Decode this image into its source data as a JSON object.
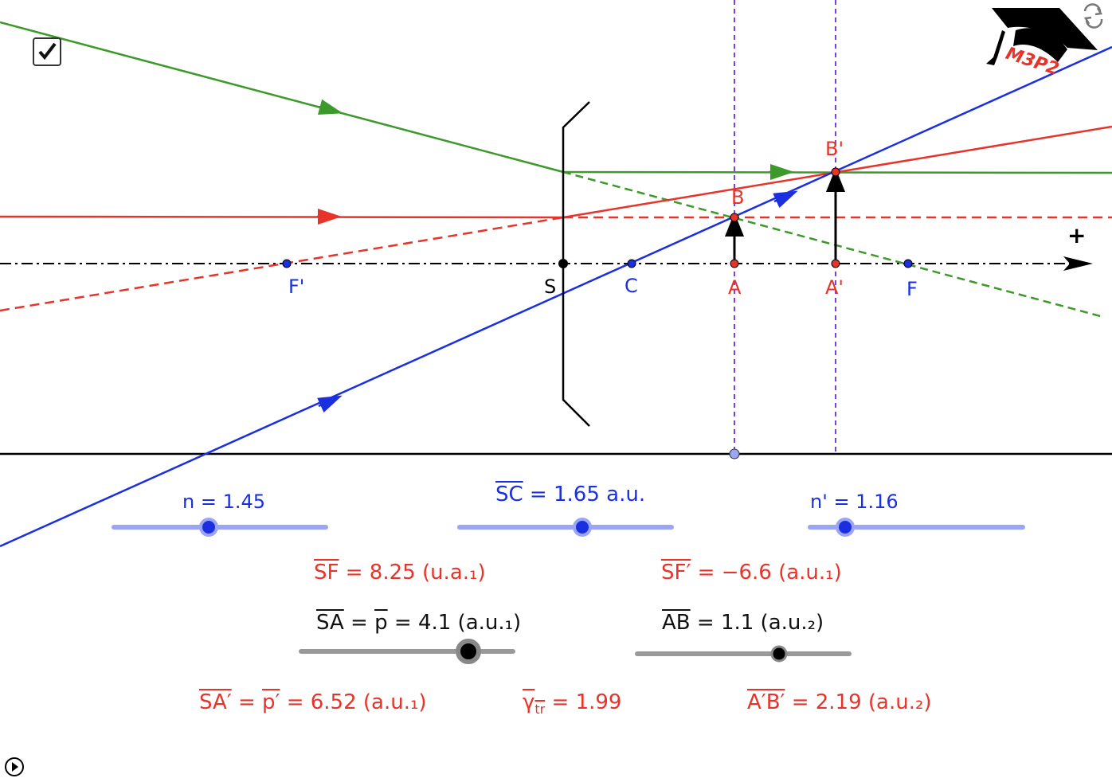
{
  "points": {
    "F_prime": "F'",
    "S": "S",
    "C": "C",
    "A": "A",
    "A_prime": "A'",
    "F": "F",
    "B": "B",
    "B_prime": "B'"
  },
  "axis_plus": "+",
  "logo_text": "M3P2",
  "sliders": {
    "n": {
      "label": "n = 1.45",
      "value": 1.45
    },
    "sc": {
      "lhs": "SC",
      "rest": " = 1.65 a.u.",
      "value": 1.65
    },
    "n_prime": {
      "label": "n' = 1.16",
      "value": 1.16
    },
    "sa": {
      "lhs": "SA",
      "mid": " = ",
      "p": "p",
      "rest": " = 4.1 (a.u.₁)",
      "value": 4.1
    },
    "ab": {
      "lhs": "AB",
      "rest": " =  1.1 (a.u.₂)",
      "value": 1.1
    }
  },
  "results": {
    "sf": {
      "lhs": "SF",
      "rest": " = 8.25 (u.a.₁)"
    },
    "sf_prime": {
      "lhs": "SF′",
      "rest": " = −6.6 (a.u.₁)"
    },
    "sa_prime": {
      "lhs": "SA′",
      "mid": " = ",
      "p": "p′",
      "rest": " = 6.52 (a.u.₁)"
    },
    "gamma": {
      "lhs": "γ",
      "sub": "tr",
      "rest": " = 1.99"
    },
    "ab_prime": {
      "lhs": "A′B′",
      "rest": " = 2.19 (a.u.₂)"
    }
  },
  "colors": {
    "ray_green": "#3c9a2a",
    "ray_red": "#e8332a",
    "ray_blue": "#1a2fe0",
    "slider_blue": "#9aa5f5",
    "slider_gray": "#999999",
    "construction_purple": "#7b3fe4"
  },
  "icons": {
    "checkbox": "checkmark-icon",
    "reset": "refresh-icon",
    "play": "play-icon"
  },
  "checkbox_checked": true
}
